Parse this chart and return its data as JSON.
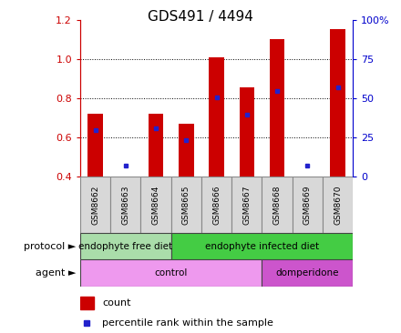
{
  "title": "GDS491 / 4494",
  "samples": [
    "GSM8662",
    "GSM8663",
    "GSM8664",
    "GSM8665",
    "GSM8666",
    "GSM8667",
    "GSM8668",
    "GSM8669",
    "GSM8670"
  ],
  "counts": [
    0.72,
    0.4,
    0.72,
    0.67,
    1.01,
    0.855,
    1.1,
    0.4,
    1.155
  ],
  "percentile_ranks": [
    0.635,
    0.455,
    0.645,
    0.585,
    0.805,
    0.715,
    0.835,
    0.455,
    0.855
  ],
  "ylim": [
    0.4,
    1.2
  ],
  "yticks_left": [
    0.4,
    0.6,
    0.8,
    1.0,
    1.2
  ],
  "yticks_right": [
    0,
    25,
    50,
    75,
    100
  ],
  "bar_color": "#cc0000",
  "dot_color": "#2222cc",
  "bar_width": 0.5,
  "bar_bottom": 0.4,
  "protocol_groups": [
    {
      "label": "endophyte free diet",
      "start": 0,
      "end": 3,
      "color": "#aaddaa"
    },
    {
      "label": "endophyte infected diet",
      "start": 3,
      "end": 9,
      "color": "#44cc44"
    }
  ],
  "agent_groups": [
    {
      "label": "control",
      "start": 0,
      "end": 6,
      "color": "#ee99ee"
    },
    {
      "label": "domperidone",
      "start": 6,
      "end": 9,
      "color": "#cc55cc"
    }
  ],
  "protocol_label": "protocol",
  "agent_label": "agent",
  "legend_count_color": "#cc0000",
  "legend_dot_color": "#2222cc",
  "legend_count_label": "count",
  "legend_dot_label": "percentile rank within the sample",
  "background_color": "#ffffff",
  "title_fontsize": 11,
  "tick_fontsize": 8,
  "xtick_gray": "#cccccc"
}
